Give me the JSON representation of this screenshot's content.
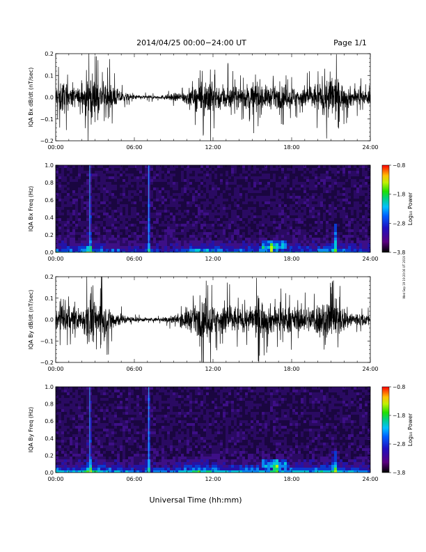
{
  "header": {
    "title": "2014/04/25  00:00−24:00 UT",
    "page": "Page 1/1"
  },
  "side_note": "Wed Sep 19 19:20:06 UT 2019",
  "xlabel": "Universal Time (hh:mm)",
  "xticks": [
    "00:00",
    "06:00",
    "12:00",
    "18:00",
    "24:00"
  ],
  "chart_data": [
    {
      "type": "line",
      "ylabel": "IQA Bx dB/dt (nT/sec)",
      "ylim": [
        -0.2,
        0.2
      ],
      "yticks": [
        "0.2",
        "0.1",
        "0.0",
        "−0.1",
        "−0.2"
      ],
      "x_range_hours": [
        0,
        24
      ],
      "envelope": {
        "x_hours": [
          0,
          0.5,
          1,
          1.5,
          2,
          2.4,
          2.6,
          2.8,
          3.0,
          3.5,
          4,
          4.5,
          5,
          5.5,
          6,
          7,
          8,
          9,
          9.5,
          10,
          10.5,
          11,
          11.5,
          11.8,
          12,
          12.5,
          13,
          13.5,
          14,
          15,
          15.5,
          16,
          16.5,
          17,
          17.5,
          18,
          18.5,
          19,
          19.5,
          20,
          20.5,
          21,
          21.3,
          21.5,
          22,
          22.5,
          23,
          23.5,
          24
        ],
        "amplitude": [
          0.1,
          0.14,
          0.09,
          0.08,
          0.07,
          0.2,
          0.2,
          0.2,
          0.14,
          0.12,
          0.14,
          0.08,
          0.05,
          0.03,
          0.02,
          0.015,
          0.015,
          0.03,
          0.04,
          0.06,
          0.08,
          0.12,
          0.15,
          0.2,
          0.12,
          0.1,
          0.12,
          0.09,
          0.08,
          0.12,
          0.14,
          0.09,
          0.09,
          0.08,
          0.1,
          0.09,
          0.08,
          0.09,
          0.1,
          0.12,
          0.14,
          0.2,
          0.2,
          0.14,
          0.1,
          0.08,
          0.07,
          0.06,
          0.05
        ]
      }
    },
    {
      "type": "heatmap",
      "ylabel": "IQA Bx Freq (Hz)",
      "ylim": [
        0.0,
        1.0
      ],
      "yticks": [
        "1.0",
        "0.8",
        "0.6",
        "0.4",
        "0.2",
        "0.0"
      ],
      "x_range_hours": [
        0,
        24
      ],
      "colorbar": {
        "label": "Log₁₀ Power",
        "range": [
          -3.8,
          -0.8
        ],
        "ticks": [
          "−0.8",
          "−1.8",
          "−2.8",
          "−3.8"
        ]
      },
      "features": [
        {
          "x_hours": 2.6,
          "desc": "broadband burst",
          "top_hz": 1.0
        },
        {
          "x_hours": 7.1,
          "desc": "narrow vertical line",
          "top_hz": 1.0
        },
        {
          "x_hours": 16.5,
          "desc": "band near 0.1 Hz",
          "top_hz": 0.15
        },
        {
          "x_hours": 21.3,
          "desc": "burst",
          "top_hz": 0.35
        }
      ]
    },
    {
      "type": "line",
      "ylabel": "IQA By dB/dt (nT/sec)",
      "ylim": [
        -0.2,
        0.2
      ],
      "yticks": [
        "0.2",
        "0.1",
        "0.0",
        "−0.1",
        "−0.2"
      ],
      "x_range_hours": [
        0,
        24
      ],
      "envelope": {
        "x_hours": [
          0,
          0.5,
          1,
          1.5,
          2,
          2.4,
          2.6,
          2.8,
          3.0,
          3.5,
          4,
          4.5,
          5,
          5.5,
          6,
          7,
          8,
          9,
          9.5,
          10,
          10.5,
          11,
          11.5,
          11.8,
          12,
          12.5,
          13,
          13.5,
          14,
          15,
          15.5,
          16,
          16.5,
          17,
          17.5,
          18,
          18.5,
          19,
          19.5,
          20,
          20.5,
          21,
          21.3,
          21.5,
          22,
          22.5,
          23,
          23.5,
          24
        ],
        "amplitude": [
          0.08,
          0.12,
          0.1,
          0.1,
          0.08,
          0.2,
          0.2,
          0.2,
          0.15,
          0.16,
          0.12,
          0.07,
          0.05,
          0.03,
          0.02,
          0.015,
          0.015,
          0.04,
          0.05,
          0.1,
          0.1,
          0.13,
          0.18,
          0.2,
          0.12,
          0.13,
          0.15,
          0.12,
          0.1,
          0.1,
          0.2,
          0.12,
          0.12,
          0.1,
          0.12,
          0.1,
          0.1,
          0.1,
          0.12,
          0.14,
          0.17,
          0.2,
          0.2,
          0.14,
          0.1,
          0.07,
          0.06,
          0.05,
          0.05
        ]
      }
    },
    {
      "type": "heatmap",
      "ylabel": "IQA By Freq (Hz)",
      "ylim": [
        0.0,
        1.0
      ],
      "yticks": [
        "1.0",
        "0.8",
        "0.6",
        "0.4",
        "0.2",
        "0.0"
      ],
      "x_range_hours": [
        0,
        24
      ],
      "colorbar": {
        "label": "Log₁₀ Power",
        "range": [
          -3.8,
          -0.8
        ],
        "ticks": [
          "−0.8",
          "−1.8",
          "−2.8",
          "−3.8"
        ]
      },
      "features": [
        {
          "x_hours": 2.6,
          "desc": "broadband burst",
          "top_hz": 1.0
        },
        {
          "x_hours": 7.1,
          "desc": "narrow vertical line",
          "top_hz": 1.0
        },
        {
          "x_hours": 16.8,
          "desc": "band near 0.12 Hz",
          "top_hz": 0.15
        },
        {
          "x_hours": 21.3,
          "desc": "burst",
          "top_hz": 0.3
        }
      ]
    }
  ]
}
